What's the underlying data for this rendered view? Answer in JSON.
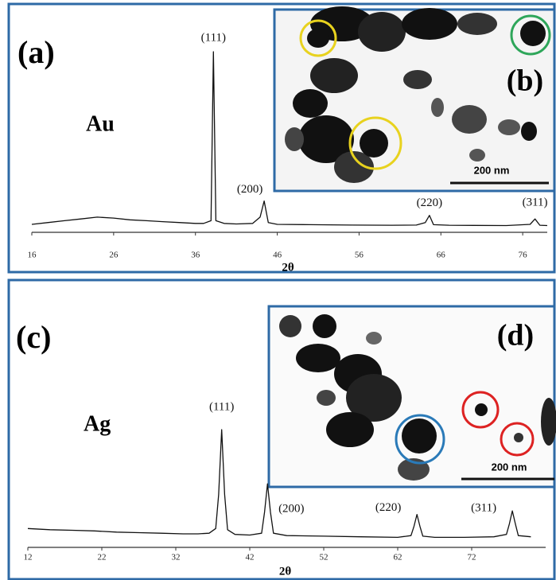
{
  "chart_data": [
    {
      "type": "line",
      "panel_label": "(a)",
      "sample": "Au",
      "x_label": "2θ",
      "x": [
        16,
        18,
        20,
        22,
        24,
        26,
        28,
        30,
        32,
        34,
        36,
        37,
        37.9,
        38.2,
        38.5,
        39.5,
        41,
        43,
        43.9,
        44.4,
        44.9,
        46,
        50,
        55,
        60,
        63,
        64.1,
        64.6,
        65.1,
        67,
        70,
        74,
        76.9,
        77.5,
        78.1,
        79
      ],
      "values": [
        4,
        5,
        6,
        7,
        8,
        7.5,
        6.5,
        6,
        5.5,
        5,
        4.5,
        4.5,
        6,
        100,
        6,
        4.5,
        4.2,
        4.5,
        8,
        17,
        5,
        4,
        3.8,
        3.6,
        3.5,
        3.6,
        5,
        9,
        3.8,
        3.5,
        3.4,
        3.3,
        4,
        7,
        3.5,
        3.3
      ],
      "color": "#111111",
      "xlim": [
        16,
        79
      ],
      "xticks": [
        16,
        26,
        36,
        46,
        56,
        66,
        76
      ],
      "ylim": [
        0,
        100
      ],
      "peaks": [
        {
          "label": "(111)",
          "x": 38.2
        },
        {
          "label": "(200)",
          "x": 44.4
        },
        {
          "label": "(220)",
          "x": 64.6
        },
        {
          "label": "(311)",
          "x": 77.5
        }
      ],
      "inset": {
        "label": "(b)",
        "scale": "200 nm"
      }
    },
    {
      "type": "line",
      "panel_label": "(c)",
      "sample": "Ag",
      "x_label": "2θ",
      "x": [
        12,
        15,
        18,
        21,
        24,
        27,
        30,
        33,
        35,
        36.5,
        37.4,
        37.8,
        38.2,
        38.6,
        39,
        40,
        42,
        43.6,
        44,
        44.4,
        44.8,
        45.2,
        47,
        52,
        57,
        62,
        63.8,
        64.2,
        64.6,
        65,
        65.4,
        67,
        71,
        75,
        76.7,
        77.1,
        77.5,
        77.9,
        78.3,
        80
      ],
      "values": [
        16,
        15,
        14.5,
        14,
        13,
        12.5,
        12,
        11.5,
        11.5,
        12,
        16,
        45,
        100,
        45,
        15,
        11,
        10.5,
        12,
        30,
        54,
        30,
        12,
        10,
        9.5,
        9,
        8.5,
        10,
        18,
        28,
        18,
        9.5,
        8.5,
        8.5,
        9,
        11,
        20,
        31,
        20,
        10,
        9
      ],
      "color": "#111111",
      "xlim": [
        12,
        82
      ],
      "xticks": [
        12,
        22,
        32,
        42,
        52,
        62,
        72
      ],
      "ylim": [
        0,
        100
      ],
      "peaks": [
        {
          "label": "(111)",
          "x": 38.2
        },
        {
          "label": "(200)",
          "x": 44.4
        },
        {
          "label": "(220)",
          "x": 64.6
        },
        {
          "label": "(311)",
          "x": 77.5
        }
      ],
      "inset": {
        "label": "(d)",
        "scale": "200 nm"
      }
    }
  ]
}
